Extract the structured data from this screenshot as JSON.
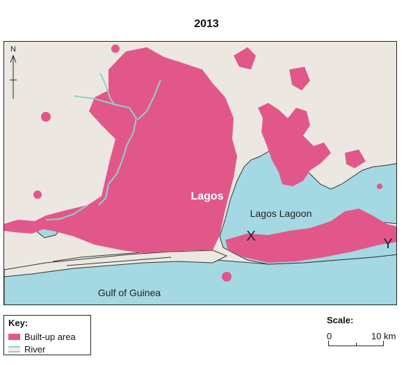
{
  "title": "2013",
  "map": {
    "north_label": "N",
    "city_label": "Lagos",
    "lagoon_label": "Lagos Lagoon",
    "sea_label": "Gulf of Guinea",
    "point_x_label": "X",
    "point_y_label": "Y"
  },
  "key": {
    "title": "Key",
    "built_up": "Built-up area",
    "river": "River"
  },
  "scale": {
    "title": "Scale",
    "start": "0",
    "end": "10 km"
  },
  "colors": {
    "built_up": "#e2578a",
    "land": "#ece8e1",
    "water": "#a4d8e2",
    "river": "#8fd0cf"
  }
}
